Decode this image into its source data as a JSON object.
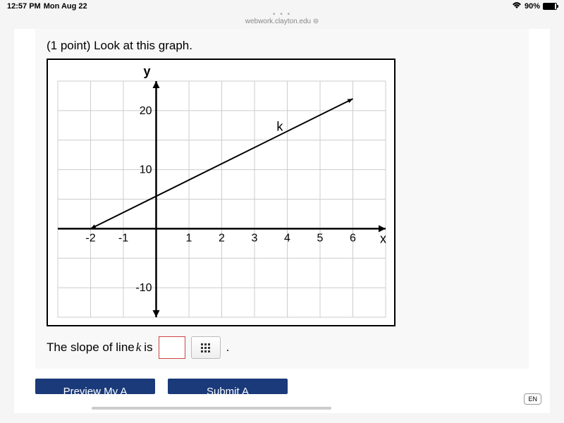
{
  "status": {
    "time": "12:57 PM",
    "day": "Mon Aug 22",
    "battery_pct": "90%",
    "wifi_icon": "wifi"
  },
  "browser": {
    "url": "webwork.clayton.edu"
  },
  "problem": {
    "prompt": "(1 point) Look at this graph.",
    "answer_label_pre": "The slope of line ",
    "answer_var": "k",
    "answer_label_post": " is",
    "answer_value": "",
    "period": "."
  },
  "graph": {
    "type": "line",
    "x_axis_label": "x",
    "y_axis_label": "y",
    "line_label": "k",
    "x_ticks": [
      -2,
      -1,
      1,
      2,
      3,
      4,
      5,
      6
    ],
    "y_ticks": [
      -10,
      10,
      20
    ],
    "x_range": [
      -3,
      7
    ],
    "y_range": [
      -15,
      25
    ],
    "grid_x_step": 1,
    "grid_y_step": 5,
    "line_points": [
      [
        -2,
        0
      ],
      [
        6,
        22
      ]
    ],
    "background_color": "#ffffff",
    "grid_color": "#cccccc",
    "axis_color": "#000000",
    "line_color": "#000000",
    "line_width": 2,
    "axis_width": 2.5,
    "tick_fontsize": 16,
    "label_fontsize": 18
  },
  "buttons": {
    "preview": "Preview My A",
    "submit": "Submit A"
  },
  "lang": "EN"
}
